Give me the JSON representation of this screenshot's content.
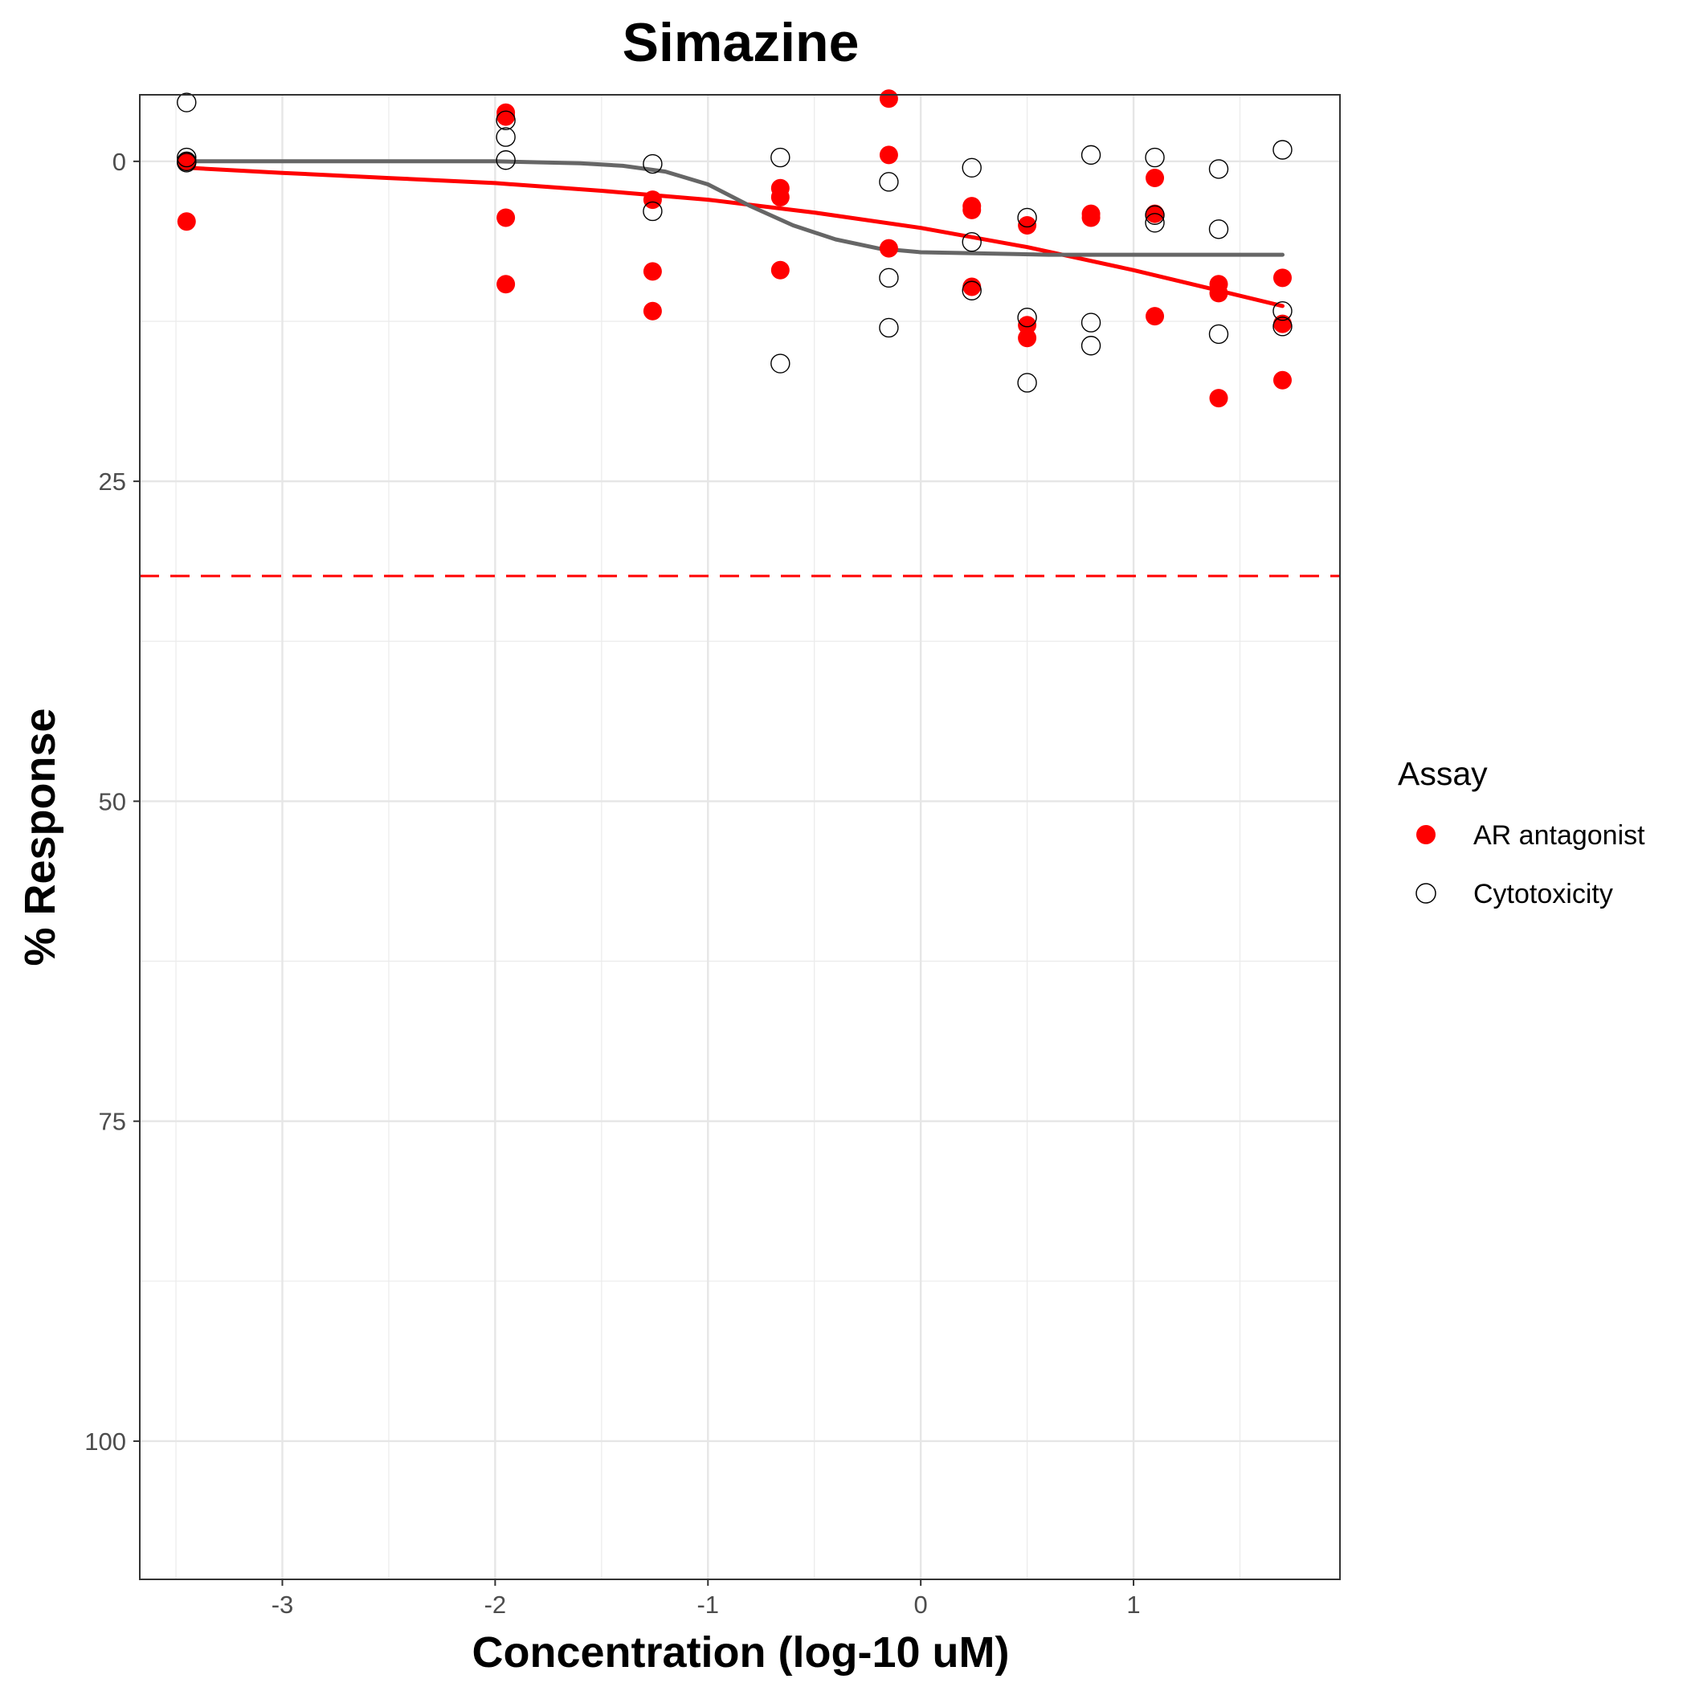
{
  "chart_data": {
    "type": "scatter",
    "title": "Simazine",
    "xlabel": "Concentration (log-10 uM)",
    "ylabel": "% Response",
    "xlim": [
      -3.67,
      1.97
    ],
    "ylim": [
      -5.2,
      110.8
    ],
    "y_reversed": true,
    "xticks": [
      -3,
      -2,
      -1,
      0,
      1
    ],
    "xtick_labels": [
      "-3",
      "-2",
      "-1",
      "0",
      "1"
    ],
    "yticks": [
      0,
      25,
      50,
      75,
      100
    ],
    "ytick_labels": [
      "0",
      "25",
      "50",
      "75",
      "100"
    ],
    "grid": true,
    "legend": {
      "title": "Assay",
      "position": "right",
      "entries": [
        {
          "label": "AR antagonist",
          "marker": "filled-circle",
          "color": "#ff0000"
        },
        {
          "label": "Cytotoxicity",
          "marker": "open-circle",
          "color": "#000000"
        }
      ]
    },
    "reference_line": {
      "y": 32.4,
      "style": "dashed",
      "color": "#ff0000"
    },
    "series": [
      {
        "name": "AR antagonist",
        "color": "#ff0000",
        "marker": "filled",
        "points": [
          {
            "x": -3.45,
            "y": 0
          },
          {
            "x": -3.45,
            "y": 4.7
          },
          {
            "x": -1.95,
            "y": -3.5
          },
          {
            "x": -1.95,
            "y": -3.8
          },
          {
            "x": -1.95,
            "y": 4.4
          },
          {
            "x": -1.95,
            "y": 9.6
          },
          {
            "x": -1.26,
            "y": 3.0
          },
          {
            "x": -1.26,
            "y": 8.6
          },
          {
            "x": -1.26,
            "y": 11.7
          },
          {
            "x": -0.66,
            "y": 2.1
          },
          {
            "x": -0.66,
            "y": 2.8
          },
          {
            "x": -0.66,
            "y": 8.5
          },
          {
            "x": -0.15,
            "y": -4.9
          },
          {
            "x": -0.15,
            "y": -0.5
          },
          {
            "x": -0.15,
            "y": 6.8
          },
          {
            "x": 0.24,
            "y": 3.5
          },
          {
            "x": 0.24,
            "y": 3.8
          },
          {
            "x": 0.24,
            "y": 9.8
          },
          {
            "x": 0.5,
            "y": 5.0
          },
          {
            "x": 0.5,
            "y": 12.8
          },
          {
            "x": 0.5,
            "y": 13.8
          },
          {
            "x": 0.8,
            "y": 4.1
          },
          {
            "x": 0.8,
            "y": 4.4
          },
          {
            "x": 1.1,
            "y": 1.3
          },
          {
            "x": 1.1,
            "y": 4.1
          },
          {
            "x": 1.1,
            "y": 12.1
          },
          {
            "x": 1.4,
            "y": 9.6
          },
          {
            "x": 1.4,
            "y": 10.3
          },
          {
            "x": 1.4,
            "y": 18.5
          },
          {
            "x": 1.7,
            "y": 9.1
          },
          {
            "x": 1.7,
            "y": 12.7
          },
          {
            "x": 1.7,
            "y": 17.1
          }
        ],
        "fit": [
          {
            "x": -3.45,
            "y": 0.5
          },
          {
            "x": -3.0,
            "y": 0.9
          },
          {
            "x": -2.5,
            "y": 1.3
          },
          {
            "x": -2.0,
            "y": 1.7
          },
          {
            "x": -1.5,
            "y": 2.3
          },
          {
            "x": -1.0,
            "y": 3.0
          },
          {
            "x": -0.5,
            "y": 4.0
          },
          {
            "x": 0.0,
            "y": 5.2
          },
          {
            "x": 0.5,
            "y": 6.7
          },
          {
            "x": 1.0,
            "y": 8.5
          },
          {
            "x": 1.4,
            "y": 10.1
          },
          {
            "x": 1.7,
            "y": 11.3
          }
        ]
      },
      {
        "name": "Cytotoxicity",
        "color": "#000000",
        "marker": "open",
        "points": [
          {
            "x": -3.45,
            "y": -4.6
          },
          {
            "x": -3.45,
            "y": -0.3
          },
          {
            "x": -3.45,
            "y": 0
          },
          {
            "x": -3.45,
            "y": 0.1
          },
          {
            "x": -1.95,
            "y": -3.2
          },
          {
            "x": -1.95,
            "y": -1.9
          },
          {
            "x": -1.95,
            "y": -0.1
          },
          {
            "x": -1.26,
            "y": 0.2
          },
          {
            "x": -1.26,
            "y": 3.9
          },
          {
            "x": -0.66,
            "y": -0.3
          },
          {
            "x": -0.66,
            "y": 15.8
          },
          {
            "x": -0.15,
            "y": 1.6
          },
          {
            "x": -0.15,
            "y": 9.1
          },
          {
            "x": -0.15,
            "y": 13.0
          },
          {
            "x": 0.24,
            "y": 0.5
          },
          {
            "x": 0.24,
            "y": 6.3
          },
          {
            "x": 0.24,
            "y": 10.1
          },
          {
            "x": 0.5,
            "y": 4.4
          },
          {
            "x": 0.5,
            "y": 12.2
          },
          {
            "x": 0.5,
            "y": 17.3
          },
          {
            "x": 0.8,
            "y": -0.5
          },
          {
            "x": 0.8,
            "y": 12.6
          },
          {
            "x": 0.8,
            "y": 14.4
          },
          {
            "x": 1.1,
            "y": -0.3
          },
          {
            "x": 1.1,
            "y": 4.2
          },
          {
            "x": 1.1,
            "y": 4.8
          },
          {
            "x": 1.4,
            "y": 0.6
          },
          {
            "x": 1.4,
            "y": 5.3
          },
          {
            "x": 1.4,
            "y": 13.5
          },
          {
            "x": 1.7,
            "y": -0.9
          },
          {
            "x": 1.7,
            "y": 11.7
          },
          {
            "x": 1.7,
            "y": 12.9
          }
        ],
        "fit": [
          {
            "x": -3.45,
            "y": 0.0
          },
          {
            "x": -2.5,
            "y": 0.0
          },
          {
            "x": -2.0,
            "y": 0.0
          },
          {
            "x": -1.6,
            "y": 0.15
          },
          {
            "x": -1.4,
            "y": 0.35
          },
          {
            "x": -1.2,
            "y": 0.8
          },
          {
            "x": -1.0,
            "y": 1.8
          },
          {
            "x": -0.8,
            "y": 3.5
          },
          {
            "x": -0.6,
            "y": 5.0
          },
          {
            "x": -0.4,
            "y": 6.1
          },
          {
            "x": -0.2,
            "y": 6.8
          },
          {
            "x": 0.0,
            "y": 7.1
          },
          {
            "x": 0.3,
            "y": 7.2
          },
          {
            "x": 0.6,
            "y": 7.3
          },
          {
            "x": 1.0,
            "y": 7.3
          },
          {
            "x": 1.4,
            "y": 7.3
          },
          {
            "x": 1.7,
            "y": 7.3
          }
        ]
      }
    ]
  }
}
